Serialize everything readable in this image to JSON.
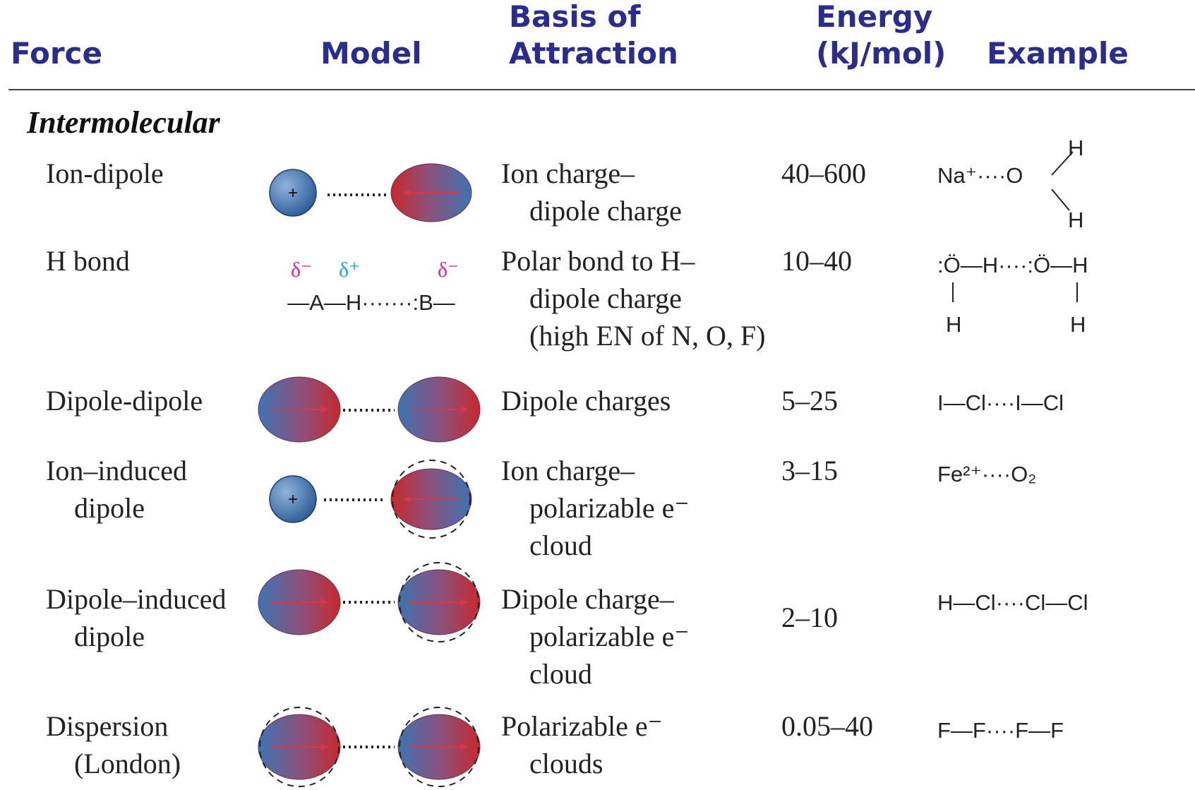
{
  "header": {
    "columns": [
      [
        "Force"
      ],
      [
        "Model"
      ],
      [
        "Basis of",
        "Attraction"
      ],
      [
        "Energy",
        "(kJ/mol)"
      ],
      [
        "Example"
      ]
    ]
  },
  "section": "Intermolecular",
  "rows": [
    {
      "force": [
        "Ion-dipole"
      ],
      "model": {
        "signs": [
          "+"
        ]
      },
      "basis": [
        "Ion charge–",
        "dipole charge"
      ],
      "energy": "40–600",
      "example": {
        "main": "Na⁺····O",
        "extra": [
          "H",
          "H"
        ]
      }
    },
    {
      "force": [
        "H bond"
      ],
      "model": {
        "labels": [
          "δ⁻",
          "δ⁺",
          "δ⁻"
        ],
        "text": "—A—H·······:B—"
      },
      "basis": [
        "Polar bond to H–",
        "dipole charge",
        "(high EN of N, O, F)"
      ],
      "energy": "10–40",
      "example": {
        "main": ":Ö—H····:Ö—H",
        "extra": [
          "H",
          "H"
        ]
      }
    },
    {
      "force": [
        "Dipole-dipole"
      ],
      "model": {},
      "basis": [
        "Dipole charges"
      ],
      "energy": "5–25",
      "example": {
        "main": "I—Cl····I—Cl"
      }
    },
    {
      "force": [
        "Ion–induced",
        "dipole"
      ],
      "model": {
        "signs": [
          "+"
        ]
      },
      "basis": [
        "Ion charge–",
        "polarizable e⁻",
        "cloud"
      ],
      "energy": "3–15",
      "example": {
        "main": "Fe²⁺····O₂"
      }
    },
    {
      "force": [
        "Dipole–induced",
        "dipole"
      ],
      "model": {},
      "basis": [
        "Dipole charge–",
        "polarizable e⁻",
        "cloud"
      ],
      "energy": "2–10",
      "example": {
        "main": "H—Cl····Cl—Cl"
      }
    },
    {
      "force": [
        "Dispersion",
        "(London)"
      ],
      "model": {},
      "basis": [
        "Polarizable e⁻",
        "clouds"
      ],
      "energy": "0.05–40",
      "example": {
        "main": "F—F····F—F"
      }
    }
  ]
}
